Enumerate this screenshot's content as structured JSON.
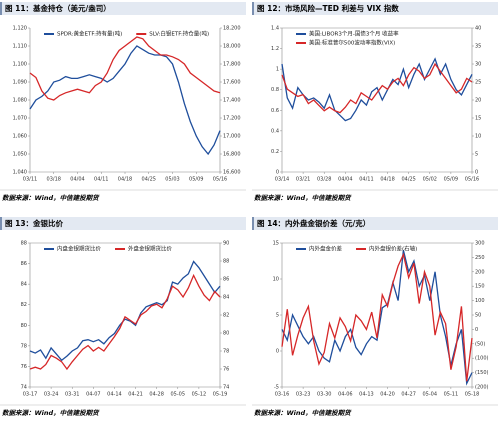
{
  "chart_data": [
    {
      "type": "line",
      "title": "图 11：基金持仓（美元/盎司）",
      "source": "数据来源：Wind，中信建投期货",
      "legend": "top",
      "frame": false,
      "categories": [
        "03/11",
        null,
        null,
        null,
        "03/18",
        null,
        null,
        null,
        "04/04",
        null,
        null,
        null,
        "04/11",
        null,
        null,
        null,
        "04/18",
        null,
        null,
        null,
        "04/25",
        null,
        null,
        null,
        "05/03",
        null,
        null,
        null,
        "05/09",
        null,
        null,
        null,
        "05/16"
      ],
      "ylim": [
        1040,
        1120
      ],
      "yticks": [
        {
          "value": 1040,
          "label": "1,040"
        },
        {
          "value": 1050,
          "label": "1,050"
        },
        {
          "value": 1060,
          "label": "1,060"
        },
        {
          "value": 1070,
          "label": "1,070"
        },
        {
          "value": 1080,
          "label": "1,080"
        },
        {
          "value": 1090,
          "label": "1,090"
        },
        {
          "value": 1100,
          "label": "1,100"
        },
        {
          "value": 1110,
          "label": "1,110"
        },
        {
          "value": 1120,
          "label": "1,120"
        }
      ],
      "y2lim": [
        16600,
        18200
      ],
      "y2ticks": [
        {
          "value": 16600,
          "label": "16,600"
        },
        {
          "value": 16800,
          "label": "16,800"
        },
        {
          "value": 17000,
          "label": "17,000"
        },
        {
          "value": 17200,
          "label": "17,200"
        },
        {
          "value": 17400,
          "label": "17,400"
        },
        {
          "value": 17600,
          "label": "17,600"
        },
        {
          "value": 17800,
          "label": "17,800"
        },
        {
          "value": 18000,
          "label": "18,000"
        },
        {
          "value": 18200,
          "label": "18,200"
        }
      ],
      "series": [
        {
          "name": "SPDR:黄金ETF:持有量(吨)",
          "color": "#1f4e9c",
          "values": [
            1075,
            1080,
            1082,
            1085,
            1090,
            1091,
            1093,
            1092,
            1092,
            1093,
            1094,
            1093,
            1092,
            1090,
            1092,
            1096,
            1100,
            1106,
            1110,
            1108,
            1106,
            1105,
            1105,
            1104,
            1100,
            1090,
            1078,
            1068,
            1060,
            1054,
            1050,
            1055,
            1063
          ]
        },
        {
          "name": "SLV:白银ETF:持仓量(吨)",
          "color": "#d62728",
          "axis": "y2",
          "values": [
            17700,
            17650,
            17500,
            17420,
            17400,
            17450,
            17480,
            17500,
            17520,
            17500,
            17480,
            17560,
            17600,
            17700,
            17850,
            17950,
            18000,
            18050,
            18100,
            18080,
            18000,
            17950,
            17900,
            17900,
            17880,
            17850,
            17800,
            17700,
            17650,
            17600,
            17550,
            17500,
            17480
          ]
        }
      ]
    },
    {
      "type": "line",
      "title": "图 12：市场风险—TED 利差与 VIX 指数",
      "source": "数据来源：Wind，中信建投期货",
      "legend": "top-left",
      "frame": true,
      "categories": [
        "03/14",
        null,
        null,
        null,
        "03/21",
        null,
        null,
        null,
        "03/28",
        null,
        null,
        null,
        "04/04",
        null,
        null,
        null,
        "04/11",
        null,
        null,
        null,
        "04/18",
        null,
        null,
        null,
        "04/25",
        null,
        null,
        null,
        "05/02",
        null,
        null,
        null,
        "05/09",
        null,
        null,
        null,
        "05/16"
      ],
      "ylim": [
        0,
        1.4
      ],
      "yticks": [
        0,
        0.2,
        0.4,
        0.6,
        0.8,
        1,
        1.2,
        1.4
      ],
      "y2lim": [
        0,
        40
      ],
      "y2ticks": [
        0,
        5,
        10,
        15,
        20,
        25,
        30,
        35,
        40
      ],
      "series": [
        {
          "name": "美国:LIBOR3个月-国债3个月 收益率",
          "color": "#1f4e9c",
          "values": [
            1.05,
            0.72,
            0.62,
            0.82,
            0.75,
            0.7,
            0.72,
            0.68,
            0.62,
            0.75,
            0.6,
            0.55,
            0.5,
            0.52,
            0.6,
            0.7,
            0.65,
            0.78,
            0.82,
            0.7,
            0.8,
            0.9,
            0.85,
            1.0,
            0.82,
            0.95,
            1.05,
            0.9,
            1.0,
            1.1,
            0.95,
            1.05,
            0.9,
            0.8,
            0.75,
            0.85,
            0.95
          ]
        },
        {
          "name": "美国:标准普尔500波动率指数(VIX)",
          "color": "#d62728",
          "axis": "y2",
          "values": [
            27,
            23,
            22,
            21,
            21.5,
            19,
            20,
            18.5,
            17,
            18,
            17,
            16.5,
            18,
            20,
            19,
            22,
            21,
            20,
            22,
            24,
            23,
            25,
            26,
            24,
            27,
            29,
            28,
            26,
            27,
            30,
            28,
            26,
            24,
            22,
            23,
            26,
            25
          ]
        }
      ]
    },
    {
      "type": "line",
      "title": "图 13：金银比价",
      "source": "数据来源：Wind，中信建投期货",
      "legend": "top",
      "frame": true,
      "categories": [
        "03-17",
        null,
        null,
        null,
        "03-24",
        null,
        null,
        null,
        "03-31",
        null,
        null,
        null,
        "04-07",
        null,
        null,
        null,
        "04-14",
        null,
        null,
        null,
        "04-21",
        null,
        null,
        null,
        "04-28",
        null,
        null,
        null,
        "05-05",
        null,
        null,
        null,
        "05-12",
        null,
        null,
        null,
        "05-19"
      ],
      "ylim": [
        74,
        88
      ],
      "yticks": [
        74,
        76,
        78,
        80,
        82,
        84,
        86,
        88
      ],
      "y2lim": [
        74,
        90
      ],
      "y2ticks": [
        74,
        76,
        78,
        80,
        82,
        84,
        86,
        88,
        90
      ],
      "series": [
        {
          "name": "内盘金银期货比价",
          "color": "#1f4e9c",
          "values": [
            77.5,
            77.3,
            77.6,
            76.8,
            77.8,
            77.2,
            76.6,
            77.0,
            77.5,
            77.8,
            78.5,
            78.6,
            78.4,
            78.6,
            78.2,
            78.8,
            79.2,
            80.0,
            80.6,
            80.4,
            80.0,
            81.2,
            81.8,
            82.0,
            82.2,
            82.0,
            82.4,
            84.2,
            84.0,
            84.6,
            85.0,
            86.2,
            85.6,
            84.8,
            84.0,
            83.2,
            83.8
          ]
        },
        {
          "name": "外盘金银期货比价",
          "color": "#d62728",
          "axis": "y2",
          "values": [
            76.0,
            76.2,
            76.0,
            76.5,
            77.5,
            77.2,
            76.8,
            76.0,
            76.8,
            77.5,
            78.2,
            78.6,
            78.0,
            78.4,
            78.0,
            78.8,
            79.6,
            80.5,
            81.8,
            81.4,
            81.0,
            82.0,
            82.4,
            83.0,
            83.2,
            82.8,
            83.8,
            85.2,
            84.8,
            84.0,
            85.0,
            86.4,
            85.2,
            84.2,
            83.6,
            84.6,
            84.0
          ]
        }
      ]
    },
    {
      "type": "line",
      "title": "图 14：内外盘金银价差（元/克）",
      "source": "数据来源：Wind，中信建投期货",
      "legend": "top",
      "frame": true,
      "categories": [
        "03-16",
        null,
        null,
        null,
        "03-23",
        null,
        null,
        null,
        "03-30",
        null,
        null,
        null,
        "04-06",
        null,
        null,
        null,
        "04-13",
        null,
        null,
        null,
        "04-20",
        null,
        null,
        null,
        "04-27",
        null,
        null,
        null,
        "05-04",
        null,
        null,
        null,
        "05-11",
        null,
        null,
        null,
        "05-18"
      ],
      "ylim": [
        -5,
        15
      ],
      "yticks": [
        -5,
        0,
        5,
        10,
        15
      ],
      "y2lim": [
        -200,
        300
      ],
      "y2ticks": [
        {
          "value": -200,
          "label": "(200)"
        },
        {
          "value": -150,
          "label": "(150)"
        },
        {
          "value": -100,
          "label": "(100)"
        },
        {
          "value": -50,
          "label": "(50)"
        },
        0,
        50,
        100,
        150,
        200,
        250,
        300
      ],
      "series": [
        {
          "name": "内外盘金价差",
          "color": "#1f4e9c",
          "values": [
            3,
            1.5,
            5,
            3.5,
            2,
            1,
            2,
            0,
            -1,
            -1.5,
            1.5,
            0,
            2,
            3,
            0.5,
            -0.5,
            1,
            2,
            1.5,
            6,
            6.5,
            9.5,
            7,
            14,
            11,
            12.5,
            9,
            10.5,
            7,
            11,
            5,
            2,
            -2,
            1,
            3,
            -4.5,
            -3
          ]
        },
        {
          "name": "内外盘银价差(右轴)",
          "color": "#d62728",
          "axis": "y2",
          "values": [
            -60,
            70,
            -90,
            -20,
            40,
            80,
            -40,
            -120,
            -80,
            20,
            -30,
            40,
            10,
            -40,
            50,
            30,
            0,
            60,
            -30,
            120,
            80,
            160,
            220,
            260,
            180,
            230,
            90,
            200,
            150,
            -20,
            60,
            20,
            -140,
            -60,
            80,
            -180,
            -30
          ]
        }
      ]
    }
  ]
}
